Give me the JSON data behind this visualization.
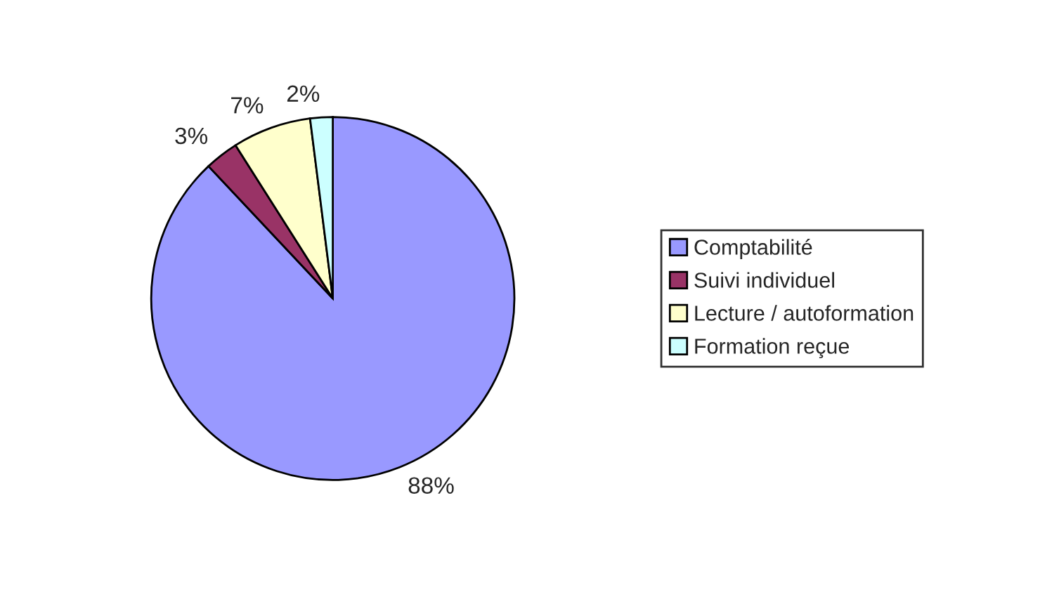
{
  "chart_data": {
    "type": "pie",
    "categories": [
      "Comptabilité",
      "Suivi individuel",
      "Lecture / autoformation",
      "Formation reçue"
    ],
    "values": [
      88,
      3,
      7,
      2
    ],
    "colors": [
      "#9999ff",
      "#993366",
      "#ffffcc",
      "#ccffff"
    ],
    "value_labels": [
      "88%",
      "3%",
      "7%",
      "2%"
    ],
    "legend": "right"
  }
}
